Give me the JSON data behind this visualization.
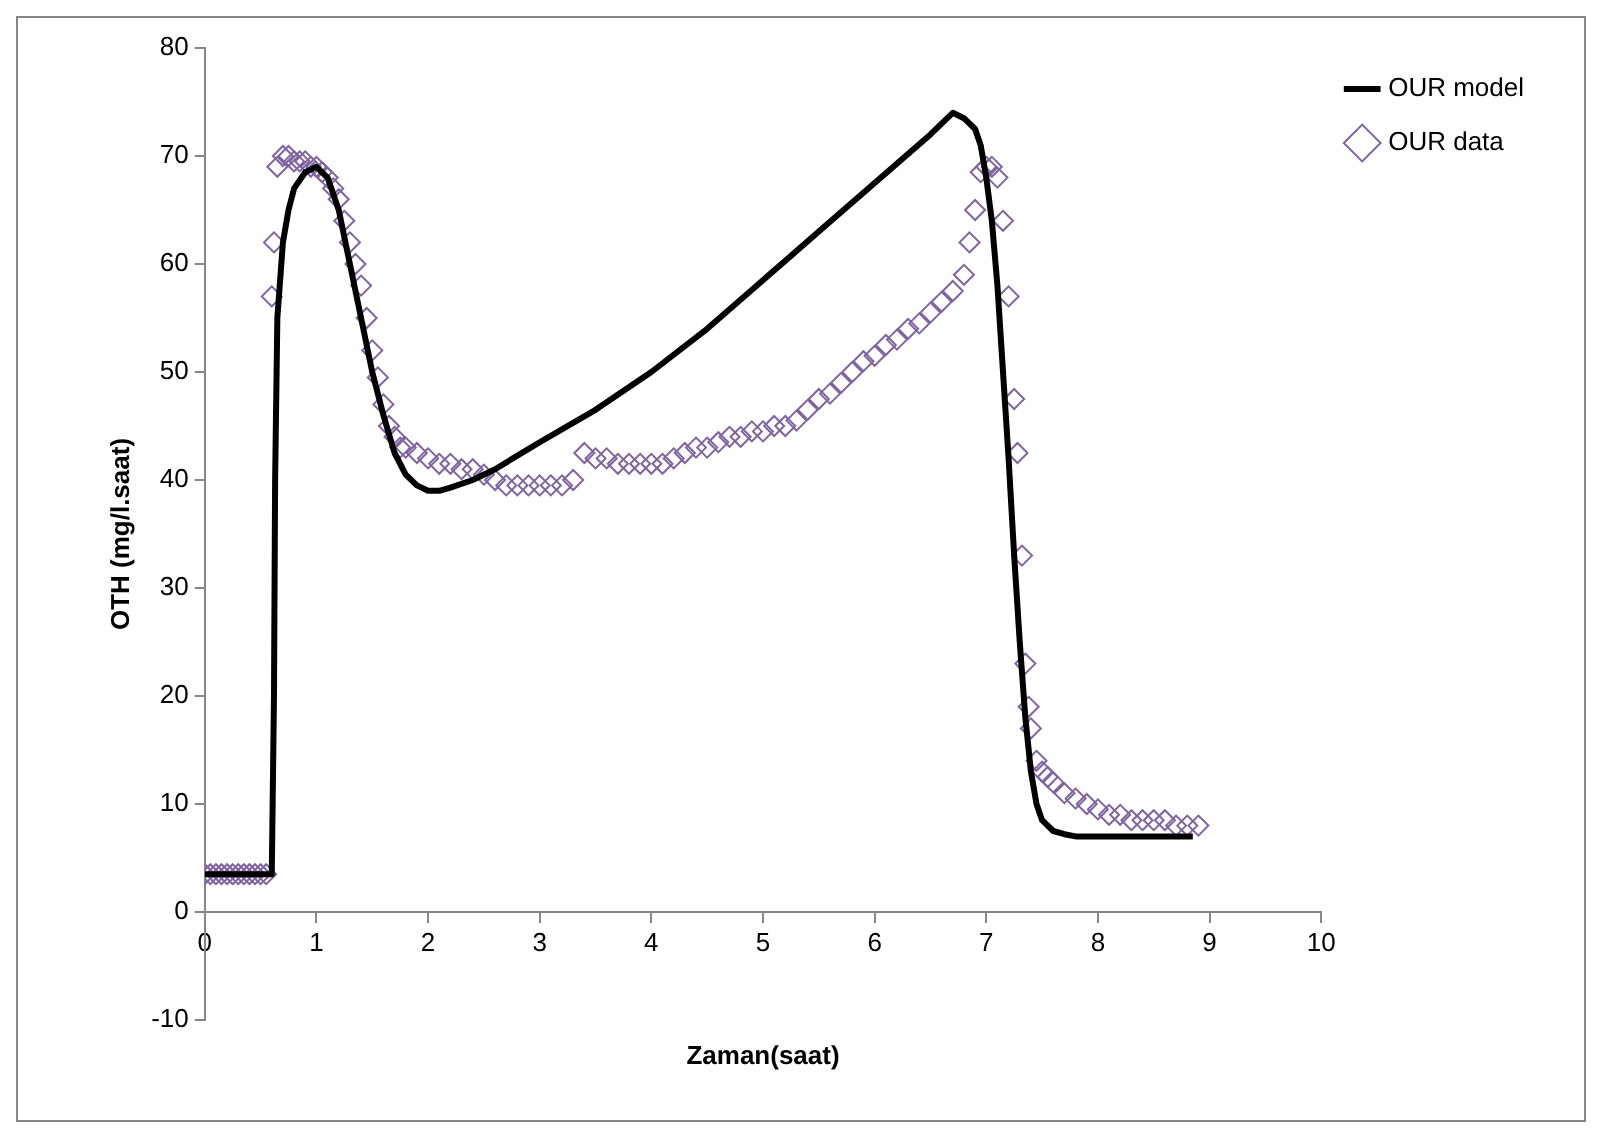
{
  "chart_data": {
    "type": "scatter",
    "xlabel": "Zaman(saat)",
    "ylabel": "OTH (mg/l.saat)",
    "xlim": [
      0,
      10
    ],
    "xticks": [
      0,
      1,
      2,
      3,
      4,
      5,
      6,
      7,
      8,
      9,
      10
    ],
    "ylim": [
      -10,
      80
    ],
    "yticks": [
      -10,
      0,
      10,
      20,
      30,
      40,
      50,
      60,
      70,
      80
    ],
    "grid": false,
    "legend": "right",
    "series": [
      {
        "name": "OUR model",
        "type": "line",
        "color": "#000000",
        "marker": "none",
        "line_style": "solid",
        "x": [
          0,
          0.3,
          0.6,
          0.62,
          0.63,
          0.65,
          0.7,
          0.75,
          0.8,
          0.9,
          1.0,
          1.1,
          1.2,
          1.3,
          1.4,
          1.5,
          1.6,
          1.7,
          1.8,
          1.9,
          2.0,
          2.1,
          2.2,
          2.4,
          2.6,
          3.0,
          3.5,
          4.0,
          4.5,
          5.0,
          5.5,
          6.0,
          6.5,
          6.7,
          6.8,
          6.9,
          6.95,
          7.0,
          7.05,
          7.1,
          7.15,
          7.2,
          7.25,
          7.3,
          7.35,
          7.4,
          7.45,
          7.5,
          7.6,
          7.7,
          7.8,
          8.0,
          8.5,
          8.85
        ],
        "values": [
          3.5,
          3.5,
          3.5,
          20,
          40,
          55,
          62,
          65,
          67,
          68.5,
          69,
          68,
          65,
          60,
          55,
          50,
          46,
          42.5,
          40.5,
          39.5,
          39,
          39,
          39.3,
          40,
          41,
          43.5,
          46.5,
          50,
          54,
          58.5,
          63,
          67.5,
          72,
          74,
          73.5,
          72.5,
          71,
          68,
          64,
          58,
          50,
          42,
          33,
          25,
          18,
          13,
          10,
          8.5,
          7.5,
          7.2,
          7,
          7,
          7,
          7
        ]
      },
      {
        "name": "OUR data",
        "type": "scatter",
        "color": "#8064a2",
        "marker": "diamond",
        "x": [
          0,
          0.05,
          0.1,
          0.15,
          0.2,
          0.25,
          0.3,
          0.35,
          0.4,
          0.45,
          0.5,
          0.55,
          0.6,
          0.62,
          0.65,
          0.7,
          0.75,
          0.8,
          0.85,
          0.9,
          0.95,
          1.0,
          1.05,
          1.1,
          1.15,
          1.2,
          1.25,
          1.3,
          1.35,
          1.4,
          1.45,
          1.5,
          1.55,
          1.6,
          1.65,
          1.7,
          1.75,
          1.8,
          1.9,
          2.0,
          2.1,
          2.2,
          2.3,
          2.4,
          2.5,
          2.6,
          2.7,
          2.8,
          2.9,
          3.0,
          3.1,
          3.2,
          3.3,
          3.4,
          3.5,
          3.6,
          3.7,
          3.8,
          3.9,
          4.0,
          4.1,
          4.2,
          4.3,
          4.4,
          4.5,
          4.6,
          4.7,
          4.8,
          4.9,
          5.0,
          5.1,
          5.2,
          5.3,
          5.4,
          5.5,
          5.6,
          5.7,
          5.8,
          5.9,
          6.0,
          6.1,
          6.2,
          6.3,
          6.4,
          6.5,
          6.6,
          6.7,
          6.8,
          6.85,
          6.9,
          6.95,
          7.0,
          7.05,
          7.1,
          7.15,
          7.2,
          7.25,
          7.28,
          7.32,
          7.35,
          7.38,
          7.4,
          7.45,
          7.5,
          7.55,
          7.6,
          7.7,
          7.8,
          7.9,
          8.0,
          8.1,
          8.2,
          8.3,
          8.4,
          8.5,
          8.6,
          8.7,
          8.8,
          8.9
        ],
        "values": [
          3.5,
          3.5,
          3.5,
          3.5,
          3.5,
          3.5,
          3.5,
          3.5,
          3.5,
          3.5,
          3.5,
          3.5,
          57,
          62,
          69,
          70,
          70,
          69.5,
          69.5,
          69.5,
          69,
          69,
          68.5,
          68,
          67,
          66,
          64,
          62,
          60,
          58,
          55,
          52,
          49.5,
          47,
          45,
          44,
          43,
          43,
          42.5,
          42,
          41.5,
          41.5,
          41,
          41,
          40.5,
          40,
          39.5,
          39.5,
          39.5,
          39.5,
          39.5,
          39.5,
          40,
          42.5,
          42,
          42,
          41.5,
          41.5,
          41.5,
          41.5,
          41.5,
          42,
          42.5,
          43,
          43,
          43.5,
          44,
          44,
          44.5,
          44.5,
          45,
          45,
          45.5,
          46.5,
          47.5,
          48,
          49,
          50,
          51,
          51.5,
          52.5,
          53,
          54,
          54.5,
          55.5,
          56.5,
          57.5,
          59,
          62,
          65,
          68.5,
          69,
          69,
          68,
          64,
          57,
          47.5,
          42.5,
          33,
          23,
          19,
          17,
          14,
          13,
          12.5,
          12,
          11,
          10.5,
          10,
          9.5,
          9,
          9,
          8.5,
          8.5,
          8.5,
          8.5,
          8,
          8,
          8
        ]
      }
    ]
  }
}
